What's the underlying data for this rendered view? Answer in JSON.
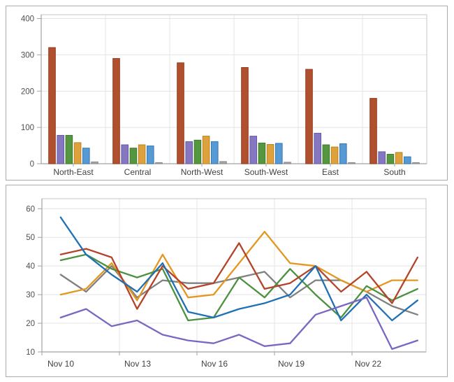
{
  "chart_data": [
    {
      "type": "bar",
      "title": "",
      "xlabel": "",
      "ylabel": "",
      "legend": "none",
      "grid": true,
      "ylim": [
        0,
        400
      ],
      "y_ticks": [
        0,
        100,
        200,
        300,
        400
      ],
      "categories": [
        "North-East",
        "Central",
        "North-West",
        "South-West",
        "East",
        "South"
      ],
      "series": [
        {
          "name": "brick-red-bars",
          "color": "#b1502e",
          "border": "#93391c",
          "values": [
            320,
            290,
            278,
            265,
            260,
            180
          ]
        },
        {
          "name": "purple-bars",
          "color": "#8677c1",
          "border": "#685aa8",
          "values": [
            78,
            52,
            61,
            76,
            84,
            33
          ]
        },
        {
          "name": "green-bars",
          "color": "#55973f",
          "border": "#3f7a2d",
          "values": [
            78,
            43,
            65,
            57,
            52,
            26
          ]
        },
        {
          "name": "orange-bars",
          "color": "#dda23d",
          "border": "#bb831f",
          "values": [
            58,
            52,
            76,
            53,
            46,
            31
          ]
        },
        {
          "name": "blue-bars",
          "color": "#579ad3",
          "border": "#3279b7",
          "values": [
            43,
            49,
            61,
            56,
            55,
            19
          ]
        },
        {
          "name": "gray-bars",
          "color": "#a5a5a5",
          "border": "#8a8a8a",
          "values": [
            5,
            3,
            6,
            4,
            3,
            3
          ]
        }
      ]
    },
    {
      "type": "line",
      "title": "",
      "xlabel": "",
      "ylabel": "",
      "legend": "none",
      "grid": true,
      "ylim": [
        10,
        60
      ],
      "y_ticks": [
        10,
        20,
        30,
        40,
        50,
        60
      ],
      "x": [
        "Nov 10",
        "Nov 11",
        "Nov 12",
        "Nov 13",
        "Nov 14",
        "Nov 15",
        "Nov 16",
        "Nov 17",
        "Nov 18",
        "Nov 19",
        "Nov 20",
        "Nov 21",
        "Nov 22",
        "Nov 23",
        "Nov 24"
      ],
      "x_tick_labels": [
        "Nov 10",
        "Nov 13",
        "Nov 16",
        "Nov 19",
        "Nov 22"
      ],
      "series": [
        {
          "name": "gray-line",
          "color": "#808080",
          "values": [
            37,
            31,
            40,
            29,
            35,
            34,
            34,
            36,
            38,
            29,
            35,
            35,
            31,
            26,
            23
          ]
        },
        {
          "name": "orange-line",
          "color": "#e29820",
          "values": [
            30,
            32,
            41,
            28,
            44,
            29,
            30,
            41,
            52,
            41,
            40,
            35,
            31,
            35,
            35
          ]
        },
        {
          "name": "green-line",
          "color": "#4c9140",
          "values": [
            42,
            44,
            39,
            36,
            39,
            21,
            22,
            36,
            29,
            39,
            30,
            22,
            33,
            28,
            32
          ]
        },
        {
          "name": "red-line",
          "color": "#b4432a",
          "values": [
            44,
            46,
            43,
            25,
            40,
            32,
            34,
            48,
            32,
            34,
            40,
            31,
            38,
            27,
            43
          ]
        },
        {
          "name": "blue-line",
          "color": "#2070b4",
          "values": [
            57,
            44,
            37,
            31,
            41,
            24,
            22,
            25,
            27,
            30,
            40,
            21,
            30,
            21,
            28
          ]
        },
        {
          "name": "purple-line",
          "color": "#7b66c2",
          "values": [
            22,
            25,
            19,
            21,
            16,
            14,
            13,
            16,
            12,
            13,
            23,
            26,
            29,
            11,
            14
          ]
        }
      ]
    }
  ],
  "style": {
    "grid_color": "#e4e4e4",
    "plot_border_color": "#c6c6c6",
    "axis_color": "#a2a2a2",
    "tick_label_color": "#4f4f4f",
    "category_label_color": "#3f3f3f"
  }
}
